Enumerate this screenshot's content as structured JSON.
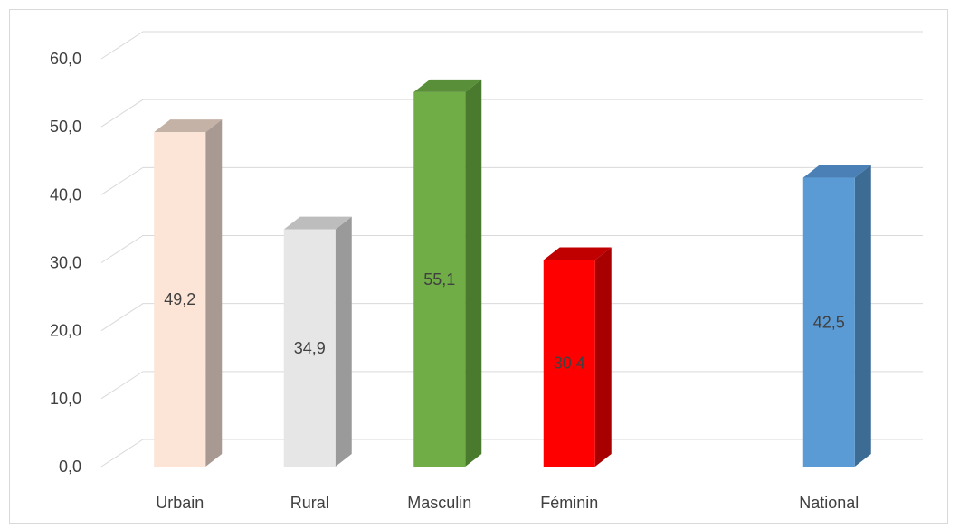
{
  "chart_data": {
    "type": "bar",
    "categories": [
      "Urbain",
      "Rural",
      "Masculin",
      "Féminin",
      "",
      "National"
    ],
    "values": [
      49.2,
      34.9,
      55.1,
      30.4,
      null,
      42.5
    ],
    "data_labels": [
      "49,2",
      "34,9",
      "55,1",
      "30,4",
      "",
      "42,5"
    ],
    "yticks": [
      "0,0",
      "10,0",
      "20,0",
      "30,0",
      "40,0",
      "50,0",
      "60,0"
    ],
    "ylim": [
      0,
      60
    ],
    "grid": true,
    "legend": "none",
    "style": "3d-column",
    "colors": {
      "front": [
        "#FCE4D6",
        "#E7E6E6",
        "#70AD47",
        "#FF0000",
        null,
        "#5B9BD5"
      ],
      "side": [
        "#A89A92",
        "#9A9A9A",
        "#4A7A2E",
        "#A80000",
        null,
        "#3C6B94"
      ],
      "top": [
        "#C4B2A6",
        "#BDBDBD",
        "#5A8F39",
        "#C00000",
        null,
        "#4A80B5"
      ],
      "grid": "#d9d9d9",
      "text": "#404040"
    }
  }
}
